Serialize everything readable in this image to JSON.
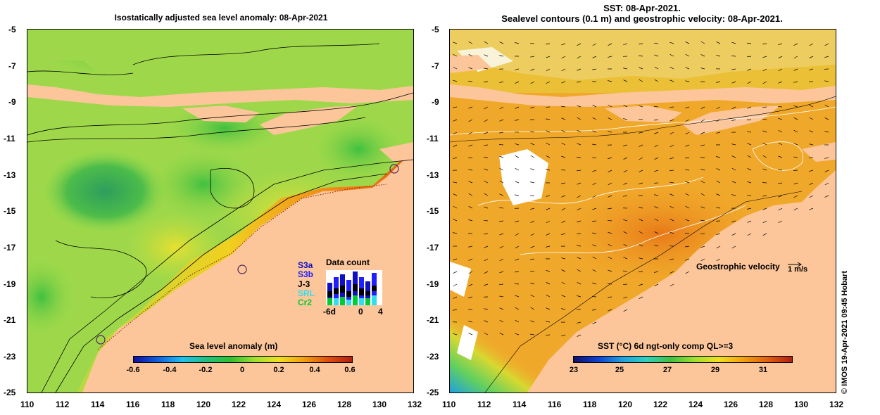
{
  "left": {
    "title": "Isostatically adjusted sea level anomaly: 08-Apr-2021",
    "colorbar_title": "Sea level anomaly (m)",
    "colorbar_ticks": [
      "-0.6",
      "-0.4",
      "-0.2",
      "0",
      "0.2",
      "0.4",
      "0.6"
    ],
    "data_count": {
      "title": "Data count",
      "satellites": [
        {
          "label": "S3a",
          "color": "#1010c0"
        },
        {
          "label": "S3b",
          "color": "#2020ff"
        },
        {
          "label": "J-3",
          "color": "#000000"
        },
        {
          "label": "SRL",
          "color": "#33ddee"
        },
        {
          "label": "Cr2",
          "color": "#00cc33"
        }
      ],
      "x_ticks": [
        "-6d",
        "0",
        "4"
      ]
    }
  },
  "right": {
    "title_line1": "SST: 08-Apr-2021.",
    "title_line2": "Sealevel contours (0.1 m) and geostrophic velocity: 08-Apr-2021.",
    "colorbar_title": "SST (°C) 6d ngt-only comp QL>=3",
    "colorbar_ticks": [
      "23",
      "25",
      "27",
      "29",
      "31"
    ],
    "velocity_label": "Geostrophic velocity",
    "velocity_scale": "1 m/s"
  },
  "axes": {
    "y_ticks": [
      "-5",
      "-7",
      "-9",
      "-11",
      "-13",
      "-15",
      "-17",
      "-19",
      "-21",
      "-23",
      "-25"
    ],
    "x_ticks": [
      "110",
      "112",
      "114",
      "116",
      "118",
      "120",
      "122",
      "124",
      "126",
      "128",
      "130",
      "132"
    ]
  },
  "credit": "© IMOS 19-Apr-2021 09:45 Hobart",
  "colors": {
    "land": "#fcc69a",
    "sla_bg": "#9ed84a",
    "sst_bg": "#f0a82a"
  }
}
